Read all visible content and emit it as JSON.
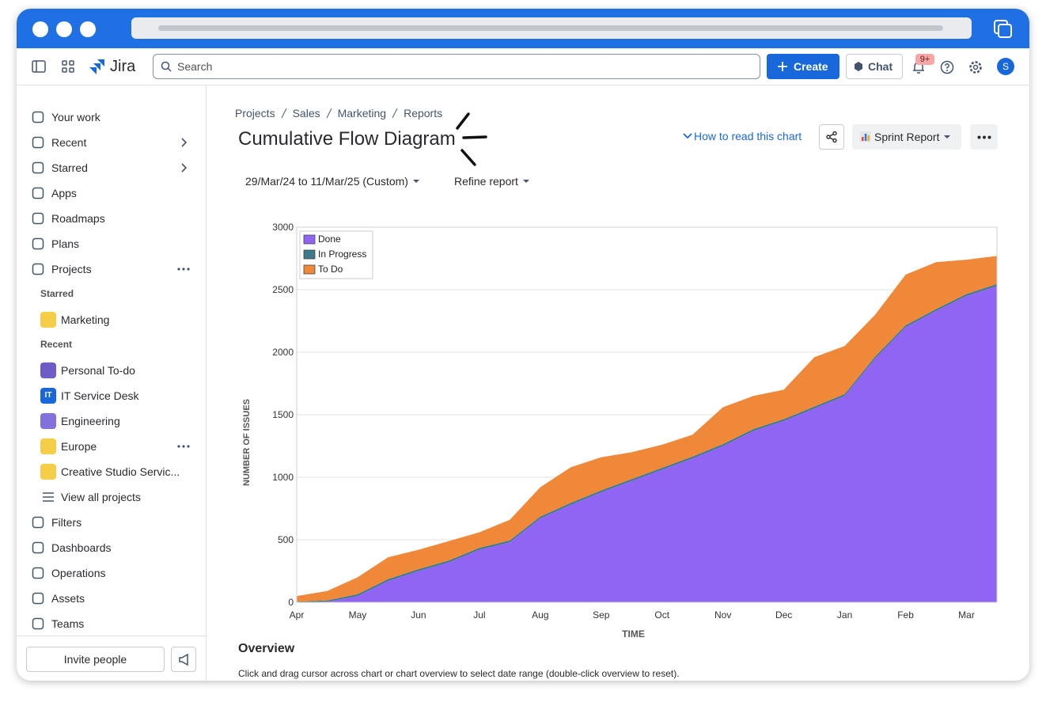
{
  "topbar": {
    "product": "Jira",
    "search_placeholder": "Search",
    "create": "Create",
    "chat": "Chat",
    "notifications": "9+",
    "avatar": "S"
  },
  "sidebar": {
    "nav_top": [
      "Your work",
      "Recent",
      "Starred",
      "Apps",
      "Roadmaps",
      "Plans",
      "Projects"
    ],
    "starred_heading": "Starred",
    "starred": [
      {
        "name": "Marketing",
        "color": "#f5cd47"
      }
    ],
    "recent_heading": "Recent",
    "recent": [
      {
        "name": "Personal To-do",
        "color": "#6e5dc6"
      },
      {
        "name": "IT Service Desk",
        "color": "#1868db",
        "icon_text": "IT"
      },
      {
        "name": "Engineering",
        "color": "#8270db"
      },
      {
        "name": "Europe",
        "color": "#f5cd47"
      },
      {
        "name": "Creative Studio Servic...",
        "color": "#f5cd47"
      }
    ],
    "view_all": "View all projects",
    "nav_bottom": [
      "Filters",
      "Dashboards",
      "Operations",
      "Assets",
      "Teams"
    ],
    "invite": "Invite people"
  },
  "breadcrumbs": [
    "Projects",
    "Sales",
    "Marketing",
    "Reports"
  ],
  "title": "Cumulative Flow Diagram",
  "actions": {
    "help": "How to read this chart",
    "report": "Sprint Report"
  },
  "filters": {
    "date_range": "29/Mar/24 to 11/Mar/25 (Custom)",
    "refine": "Refine report"
  },
  "chart_data": {
    "type": "area",
    "stacked": true,
    "xlabel": "TIME",
    "ylabel": "NUMBER OF ISSUES",
    "categories": [
      "Apr",
      null,
      "May",
      null,
      "Jun",
      null,
      "Jul",
      null,
      "Aug",
      null,
      "Sep",
      null,
      "Oct",
      null,
      "Nov",
      null,
      "Dec",
      null,
      "Jan",
      null,
      "Feb",
      null,
      "Mar",
      null
    ],
    "series": [
      {
        "name": "Done",
        "color": "#9065f4",
        "values": [
          0,
          5,
          50,
          170,
          250,
          320,
          420,
          480,
          670,
          780,
          880,
          970,
          1060,
          1150,
          1250,
          1370,
          1450,
          1550,
          1650,
          1950,
          2200,
          2330,
          2450,
          2530
        ]
      },
      {
        "name": "In Progress",
        "color": "#3d7a8a",
        "values": [
          5,
          10,
          15,
          15,
          15,
          15,
          15,
          15,
          15,
          15,
          15,
          15,
          15,
          15,
          15,
          15,
          15,
          15,
          15,
          15,
          15,
          15,
          15,
          15
        ]
      },
      {
        "name": "To Do",
        "color": "#f0883a",
        "values": [
          45,
          75,
          135,
          175,
          155,
          155,
          125,
          165,
          235,
          285,
          265,
          215,
          185,
          175,
          295,
          265,
          235,
          395,
          385,
          335,
          405,
          375,
          275,
          225
        ]
      }
    ],
    "ylim": [
      0,
      3000
    ],
    "yticks": [
      0,
      500,
      1000,
      1500,
      2000,
      2500,
      3000
    ],
    "grid": true,
    "legend": "upper left"
  },
  "overview": {
    "heading": "Overview",
    "text": "Click and drag cursor across chart or chart overview to select date range (double-click overview to reset)."
  }
}
